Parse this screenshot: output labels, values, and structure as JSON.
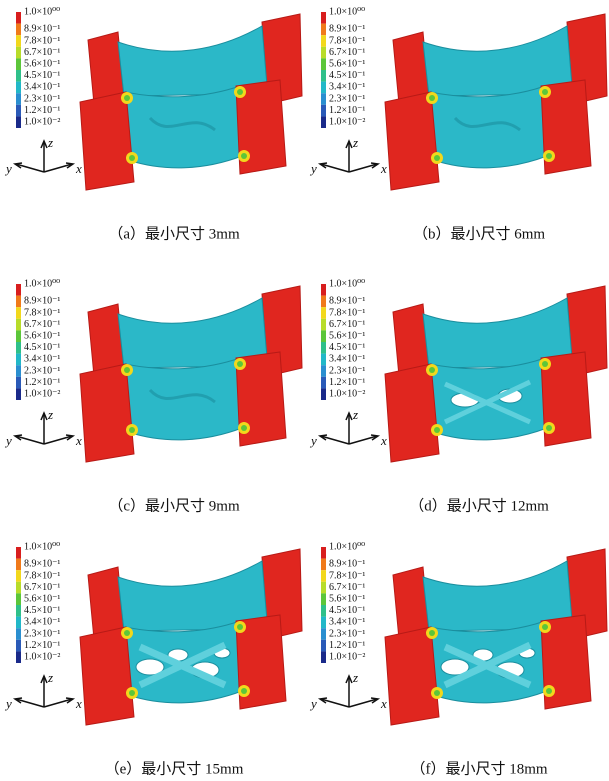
{
  "legend": [
    "1.0×10⁰⁰",
    "8.9×10⁻¹",
    "7.8×10⁻¹",
    "6.7×10⁻¹",
    "5.6×10⁻¹",
    "4.5×10⁻¹",
    "3.4×10⁻¹",
    "2.3×10⁻¹",
    "1.2×10⁻¹",
    "1.0×10⁻²"
  ],
  "axes": {
    "z": "z",
    "y": "y",
    "x": "x"
  },
  "panels": [
    {
      "caption": "（a）最小尺寸 3mm"
    },
    {
      "caption": "（b）最小尺寸 6mm"
    },
    {
      "caption": "（c）最小尺寸 9mm"
    },
    {
      "caption": "（d）最小尺寸 12mm"
    },
    {
      "caption": "（e）最小尺寸 15mm"
    },
    {
      "caption": "（f）最小尺寸 18mm"
    }
  ]
}
